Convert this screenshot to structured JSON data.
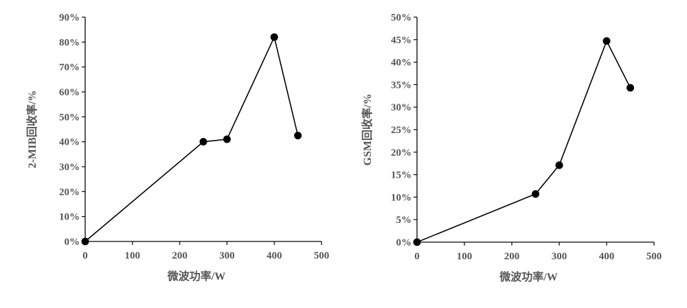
{
  "chart_data": [
    {
      "type": "line",
      "title": "",
      "xlabel": "微波功率/W",
      "ylabel": "2-MIB回收率/%",
      "xlim": [
        0,
        500
      ],
      "ylim": [
        0,
        0.9
      ],
      "x_ticks": [
        "0",
        "100",
        "200",
        "300",
        "400",
        "500"
      ],
      "y_ticks": [
        "0%",
        "10%",
        "20%",
        "30%",
        "40%",
        "50%",
        "60%",
        "70%",
        "80%",
        "90%"
      ],
      "grid": false,
      "legend": "none",
      "series": [
        {
          "x": [
            0,
            250,
            300,
            400,
            450
          ],
          "y": [
            0.0,
            0.4,
            0.41,
            0.82,
            0.425
          ]
        }
      ]
    },
    {
      "type": "line",
      "title": "",
      "xlabel": "微波功率/W",
      "ylabel": "GSM回收率/%",
      "xlim": [
        0,
        500
      ],
      "ylim": [
        0,
        0.5
      ],
      "x_ticks": [
        "0",
        "100",
        "200",
        "300",
        "400",
        "500"
      ],
      "y_ticks": [
        "0%",
        "5%",
        "10%",
        "15%",
        "20%",
        "25%",
        "30%",
        "35%",
        "40%",
        "45%",
        "50%"
      ],
      "grid": false,
      "legend": "none",
      "series": [
        {
          "x": [
            0,
            250,
            300,
            400,
            450
          ],
          "y": [
            0.0,
            0.107,
            0.171,
            0.447,
            0.343
          ]
        }
      ]
    }
  ],
  "colors": {
    "line": "#000000",
    "axis": "#000000",
    "text": "#555555"
  }
}
